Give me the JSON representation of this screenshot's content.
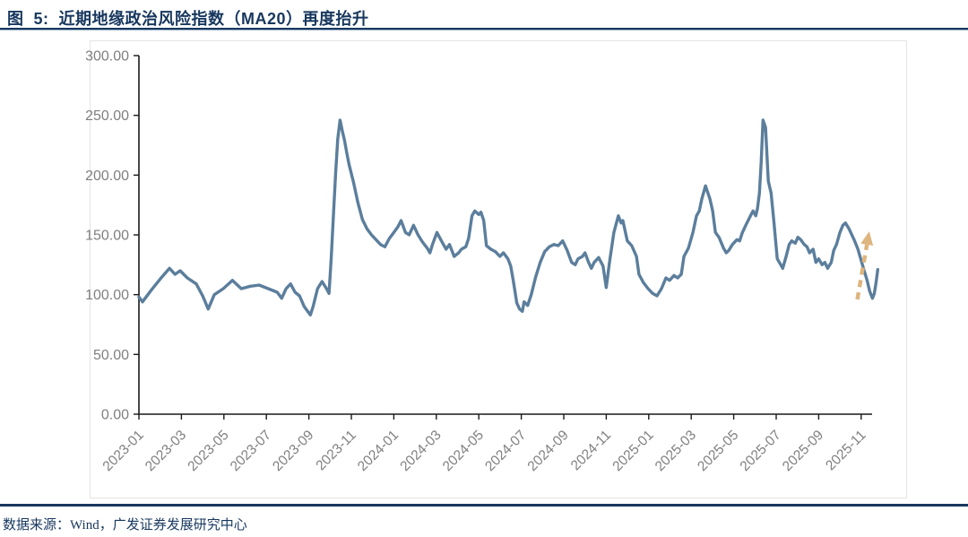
{
  "header": {
    "title": "图  5:  近期地缘政治风险指数（MA20）再度抬升"
  },
  "footer": {
    "source": "数据来源：Wind，广发证券发展研究中心"
  },
  "colors": {
    "title_navy": "#17375E",
    "series_line": "#5B7E9C",
    "arrow_tan": "#DDB57E",
    "axis_black": "#1a1a1a",
    "tick_label_gray": "#7f7f7f"
  },
  "chart_data": {
    "type": "line",
    "title": "近期地缘政治风险指数（MA20）再度抬升",
    "xlabel": "",
    "ylabel": "",
    "ylim": [
      0,
      300
    ],
    "grid": false,
    "legend": "none",
    "y_ticks": [
      {
        "value": 0,
        "label": "0.00"
      },
      {
        "value": 50,
        "label": "50.00"
      },
      {
        "value": 100,
        "label": "100.00"
      },
      {
        "value": 150,
        "label": "150.00"
      },
      {
        "value": 200,
        "label": "200.00"
      },
      {
        "value": 250,
        "label": "250.00"
      },
      {
        "value": 300,
        "label": "300.00"
      }
    ],
    "x_unit": "months since 2023-01",
    "x_ticks": [
      {
        "m": 0,
        "label": "2023-01"
      },
      {
        "m": 2,
        "label": "2023-03"
      },
      {
        "m": 4,
        "label": "2023-05"
      },
      {
        "m": 6,
        "label": "2023-07"
      },
      {
        "m": 8,
        "label": "2023-09"
      },
      {
        "m": 10,
        "label": "2023-11"
      },
      {
        "m": 12,
        "label": "2024-01"
      },
      {
        "m": 14,
        "label": "2024-03"
      },
      {
        "m": 16,
        "label": "2024-05"
      },
      {
        "m": 18,
        "label": "2024-07"
      },
      {
        "m": 20,
        "label": "2024-09"
      },
      {
        "m": 22,
        "label": "2024-11"
      },
      {
        "m": 24,
        "label": "2025-01"
      },
      {
        "m": 26,
        "label": "2025-03"
      },
      {
        "m": 28,
        "label": "2025-05"
      },
      {
        "m": 30,
        "label": "2025-07"
      },
      {
        "m": 32,
        "label": "2025-09"
      },
      {
        "m": 34,
        "label": "2025-11"
      }
    ],
    "series": [
      {
        "color": "#5B7E9C",
        "points": [
          [
            0,
            98
          ],
          [
            0.17,
            94
          ],
          [
            0.59,
            104
          ],
          [
            1,
            113
          ],
          [
            1.44,
            122
          ],
          [
            1.7,
            117
          ],
          [
            1.94,
            120
          ],
          [
            2.28,
            114
          ],
          [
            2.7,
            109
          ],
          [
            3,
            99
          ],
          [
            3.26,
            88
          ],
          [
            3.55,
            100
          ],
          [
            3.97,
            105
          ],
          [
            4.4,
            112
          ],
          [
            4.82,
            105
          ],
          [
            5.24,
            107
          ],
          [
            5.66,
            108
          ],
          [
            6.09,
            105
          ],
          [
            6.51,
            102
          ],
          [
            6.72,
            97
          ],
          [
            6.93,
            105
          ],
          [
            7.14,
            109
          ],
          [
            7.35,
            102
          ],
          [
            7.56,
            99
          ],
          [
            7.78,
            90
          ],
          [
            8.07,
            83
          ],
          [
            8.2,
            90
          ],
          [
            8.41,
            105
          ],
          [
            8.62,
            111
          ],
          [
            8.83,
            105
          ],
          [
            8.95,
            101
          ],
          [
            9.05,
            130
          ],
          [
            9.15,
            165
          ],
          [
            9.26,
            202
          ],
          [
            9.36,
            230
          ],
          [
            9.47,
            246
          ],
          [
            9.6,
            235
          ],
          [
            9.68,
            229
          ],
          [
            9.78,
            219
          ],
          [
            9.89,
            209
          ],
          [
            10.1,
            194
          ],
          [
            10.31,
            177
          ],
          [
            10.52,
            163
          ],
          [
            10.74,
            155
          ],
          [
            10.95,
            150
          ],
          [
            11.16,
            146
          ],
          [
            11.37,
            142
          ],
          [
            11.58,
            140
          ],
          [
            11.79,
            147
          ],
          [
            12,
            152
          ],
          [
            12.2,
            157
          ],
          [
            12.34,
            162
          ],
          [
            12.55,
            152
          ],
          [
            12.72,
            150
          ],
          [
            12.93,
            158
          ],
          [
            13.14,
            150
          ],
          [
            13.35,
            144
          ],
          [
            13.57,
            139
          ],
          [
            13.7,
            135
          ],
          [
            13.82,
            142
          ],
          [
            14.03,
            152
          ],
          [
            14.24,
            145
          ],
          [
            14.46,
            138
          ],
          [
            14.62,
            142
          ],
          [
            14.84,
            132
          ],
          [
            15.05,
            135
          ],
          [
            15.18,
            138
          ],
          [
            15.39,
            140
          ],
          [
            15.52,
            147
          ],
          [
            15.68,
            166
          ],
          [
            15.81,
            170
          ],
          [
            16,
            167
          ],
          [
            16.1,
            169
          ],
          [
            16.23,
            162
          ],
          [
            16.36,
            141
          ],
          [
            16.57,
            138
          ],
          [
            16.78,
            136
          ],
          [
            16.99,
            132
          ],
          [
            17.16,
            135
          ],
          [
            17.37,
            130
          ],
          [
            17.5,
            124
          ],
          [
            17.62,
            112
          ],
          [
            17.79,
            93
          ],
          [
            17.92,
            88
          ],
          [
            18.05,
            86
          ],
          [
            18.13,
            94
          ],
          [
            18.3,
            91
          ],
          [
            18.47,
            100
          ],
          [
            18.68,
            115
          ],
          [
            18.89,
            127
          ],
          [
            19.1,
            136
          ],
          [
            19.32,
            140
          ],
          [
            19.53,
            142
          ],
          [
            19.74,
            141
          ],
          [
            19.95,
            145
          ],
          [
            20.16,
            137
          ],
          [
            20.37,
            127
          ],
          [
            20.54,
            125
          ],
          [
            20.67,
            130
          ],
          [
            20.88,
            132
          ],
          [
            21,
            135
          ],
          [
            21.17,
            127
          ],
          [
            21.3,
            122
          ],
          [
            21.43,
            127
          ],
          [
            21.64,
            131
          ],
          [
            21.85,
            124
          ],
          [
            22,
            106
          ],
          [
            22.15,
            127
          ],
          [
            22.36,
            152
          ],
          [
            22.57,
            166
          ],
          [
            22.7,
            160
          ],
          [
            22.78,
            162
          ],
          [
            22.99,
            145
          ],
          [
            23.2,
            141
          ],
          [
            23.42,
            132
          ],
          [
            23.54,
            117
          ],
          [
            23.75,
            110
          ],
          [
            23.97,
            105
          ],
          [
            24.18,
            101
          ],
          [
            24.39,
            99
          ],
          [
            24.6,
            105
          ],
          [
            24.81,
            114
          ],
          [
            24.98,
            112
          ],
          [
            25.19,
            116
          ],
          [
            25.36,
            114
          ],
          [
            25.53,
            117
          ],
          [
            25.66,
            132
          ],
          [
            25.87,
            139
          ],
          [
            26.08,
            152
          ],
          [
            26.25,
            166
          ],
          [
            26.38,
            170
          ],
          [
            26.5,
            180
          ],
          [
            26.67,
            191
          ],
          [
            26.88,
            180
          ],
          [
            27.01,
            170
          ],
          [
            27.14,
            152
          ],
          [
            27.31,
            148
          ],
          [
            27.52,
            139
          ],
          [
            27.65,
            135
          ],
          [
            27.77,
            137
          ],
          [
            27.94,
            142
          ],
          [
            28.15,
            146
          ],
          [
            28.28,
            145
          ],
          [
            28.41,
            152
          ],
          [
            28.62,
            160
          ],
          [
            28.79,
            166
          ],
          [
            28.91,
            170
          ],
          [
            29.04,
            166
          ],
          [
            29.12,
            172
          ],
          [
            29.21,
            185
          ],
          [
            29.29,
            210
          ],
          [
            29.38,
            246
          ],
          [
            29.5,
            240
          ],
          [
            29.63,
            195
          ],
          [
            29.76,
            185
          ],
          [
            29.88,
            163
          ],
          [
            30.05,
            130
          ],
          [
            30.18,
            126
          ],
          [
            30.31,
            122
          ],
          [
            30.47,
            132
          ],
          [
            30.61,
            142
          ],
          [
            30.73,
            145
          ],
          [
            30.9,
            143
          ],
          [
            31.02,
            148
          ],
          [
            31.15,
            146
          ],
          [
            31.32,
            142
          ],
          [
            31.45,
            140
          ],
          [
            31.57,
            135
          ],
          [
            31.74,
            138
          ],
          [
            31.87,
            127
          ],
          [
            32,
            130
          ],
          [
            32.16,
            125
          ],
          [
            32.29,
            127
          ],
          [
            32.42,
            122
          ],
          [
            32.59,
            127
          ],
          [
            32.71,
            137
          ],
          [
            32.84,
            142
          ],
          [
            33,
            152
          ],
          [
            33.14,
            158
          ],
          [
            33.26,
            160
          ],
          [
            33.43,
            155
          ],
          [
            33.56,
            150
          ],
          [
            33.69,
            145
          ],
          [
            33.85,
            138
          ],
          [
            33.98,
            130
          ],
          [
            34.11,
            122
          ],
          [
            34.28,
            112
          ],
          [
            34.4,
            103
          ],
          [
            34.53,
            97
          ],
          [
            34.62,
            101
          ],
          [
            34.7,
            110
          ],
          [
            34.78,
            121
          ]
        ]
      }
    ],
    "annotation_arrow": {
      "style": "dashed",
      "color": "#DDB57E",
      "from": [
        33.82,
        96
      ],
      "to": [
        34.38,
        153
      ]
    }
  }
}
